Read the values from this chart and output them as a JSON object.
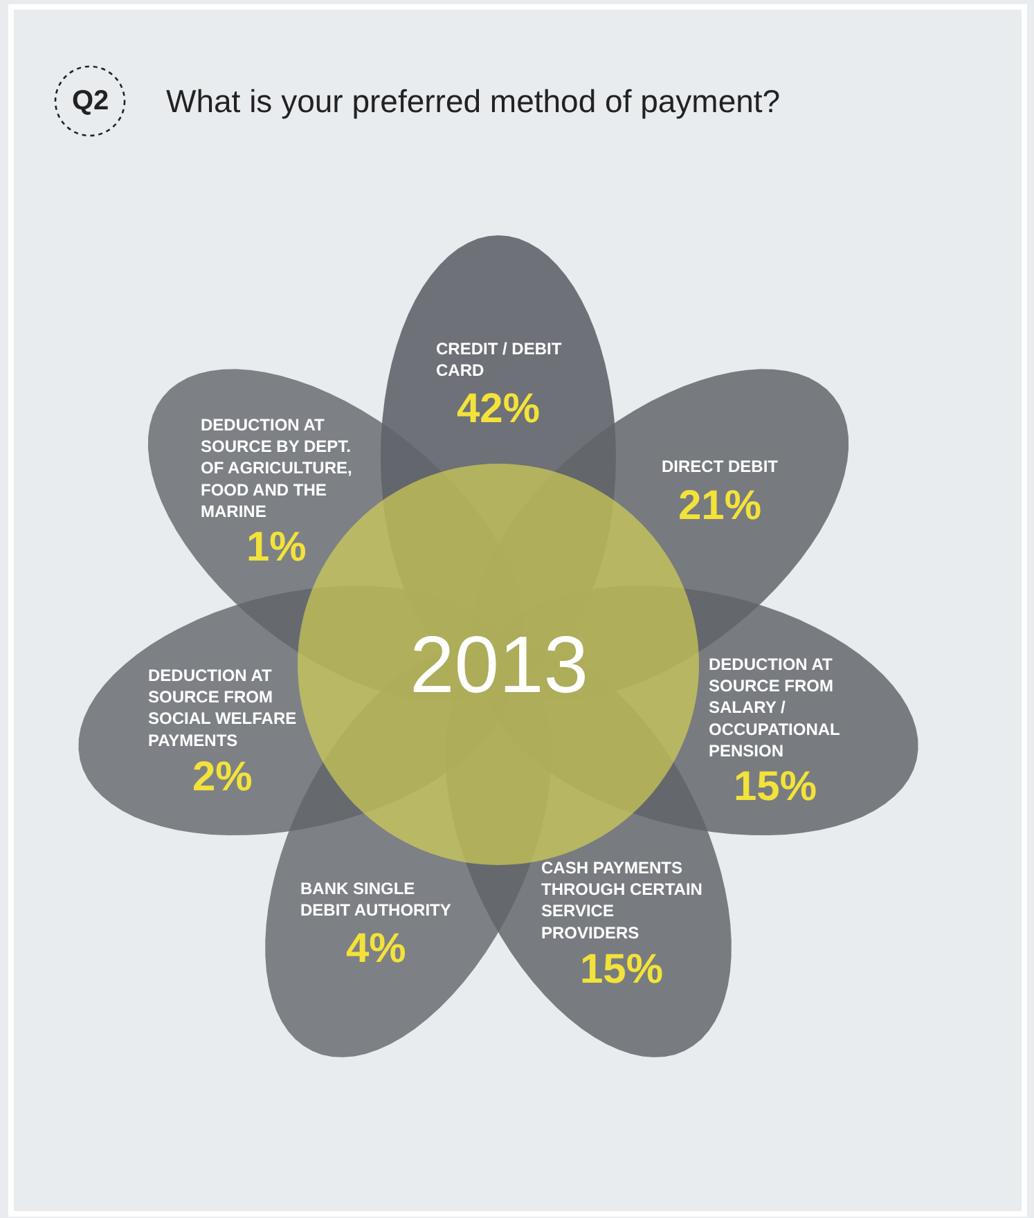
{
  "chart_data": {
    "type": "other",
    "title": "What is your preferred method of payment?",
    "categories": [
      "CREDIT / DEBIT CARD",
      "DIRECT DEBIT",
      "DEDUCTION AT SOURCE FROM SALARY / OCCUPATIONAL PENSION",
      "CASH PAYMENTS THROUGH CERTAIN SERVICE PROVIDERS",
      "BANK SINGLE DEBIT AUTHORITY",
      "DEDUCTION AT SOURCE FROM SOCIAL WELFARE PAYMENTS",
      "DEDUCTION AT SOURCE BY DEPT. OF AGRICULTURE, FOOD AND THE MARINE"
    ],
    "values": [
      42,
      21,
      15,
      15,
      4,
      2,
      1
    ],
    "value_labels": [
      "42%",
      "21%",
      "15%",
      "15%",
      "4%",
      "2%",
      "1%"
    ],
    "colors": [
      "#606469",
      "#606469",
      "#606469",
      "#606469",
      "#606469",
      "#606469",
      "#606469"
    ],
    "annotations": [
      "Q2",
      "2013"
    ]
  }
}
